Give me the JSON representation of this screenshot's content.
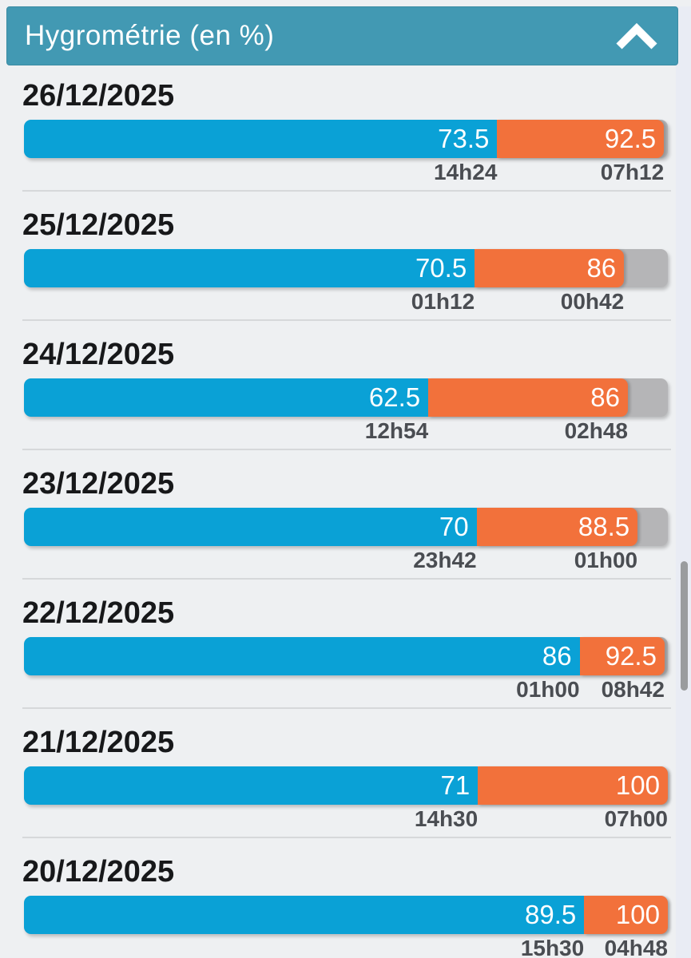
{
  "header": {
    "title": "Hygrométrie (en %)",
    "collapse_icon": "chevron-up-icon",
    "bg_color": "#4299b3"
  },
  "colors": {
    "min_segment": "#0aa1d6",
    "max_segment": "#f2713b",
    "remainder_track": "#b5b5b7",
    "header_bg": "#4299b3",
    "page_bg": "#eef0f2"
  },
  "chart_data": {
    "type": "bar",
    "variant": "horizontal-stacked-range",
    "title": "Hygrométrie (en %)",
    "unit": "%",
    "value_range": [
      0,
      100
    ],
    "legend": "blue = low humidity value with its time, orange = high humidity value with its time, gray = remainder to 100",
    "days": [
      {
        "date": "26/12/2025",
        "min": {
          "value": "73.5",
          "time": "14h24",
          "bar_end_pct": 73.5
        },
        "max": {
          "value": "92.5",
          "time": "07h12",
          "bar_end_pct": 99.4
        }
      },
      {
        "date": "25/12/2025",
        "min": {
          "value": "70.5",
          "time": "01h12",
          "bar_end_pct": 70.0
        },
        "max": {
          "value": "86",
          "time": "00h42",
          "bar_end_pct": 93.2
        }
      },
      {
        "date": "24/12/2025",
        "min": {
          "value": "62.5",
          "time": "12h54",
          "bar_end_pct": 62.8
        },
        "max": {
          "value": "86",
          "time": "02h48",
          "bar_end_pct": 93.8
        }
      },
      {
        "date": "23/12/2025",
        "min": {
          "value": "70",
          "time": "23h42",
          "bar_end_pct": 70.3
        },
        "max": {
          "value": "88.5",
          "time": "01h00",
          "bar_end_pct": 95.3
        }
      },
      {
        "date": "22/12/2025",
        "min": {
          "value": "86",
          "time": "01h00",
          "bar_end_pct": 86.3
        },
        "max": {
          "value": "92.5",
          "time": "08h42",
          "bar_end_pct": 99.5
        }
      },
      {
        "date": "21/12/2025",
        "min": {
          "value": "71",
          "time": "14h30",
          "bar_end_pct": 70.5
        },
        "max": {
          "value": "100",
          "time": "07h00",
          "bar_end_pct": 100
        }
      },
      {
        "date": "20/12/2025",
        "min": {
          "value": "89.5",
          "time": "15h30",
          "bar_end_pct": 87.0
        },
        "max": {
          "value": "100",
          "time": "04h48",
          "bar_end_pct": 100
        }
      }
    ]
  }
}
